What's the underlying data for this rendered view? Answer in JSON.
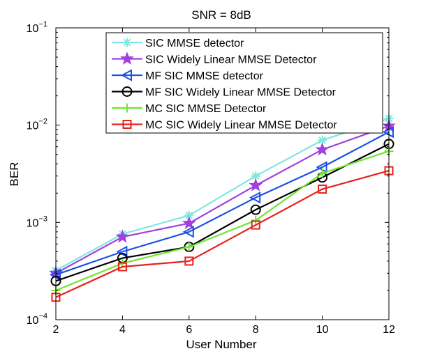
{
  "chart_data": {
    "type": "line",
    "title": "SNR = 8dB",
    "xlabel": "User Number",
    "ylabel": "BER",
    "xlim": [
      2,
      12
    ],
    "ylim": [
      0.0001,
      0.1
    ],
    "yscale": "log",
    "x_ticks": [
      "2",
      "4",
      "6",
      "8",
      "10",
      "12"
    ],
    "y_ticks": [
      {
        "base": "10",
        "exp": "−4"
      },
      {
        "base": "10",
        "exp": "−3"
      },
      {
        "base": "10",
        "exp": "−2"
      },
      {
        "base": "10",
        "exp": "−1"
      }
    ],
    "legend_position": "top-right",
    "grid": false,
    "x": [
      2,
      4,
      6,
      8,
      10,
      12
    ],
    "series": [
      {
        "name": "SIC MMSE detector",
        "color": "#7ee8e0",
        "marker": "asterisk",
        "values": [
          0.00032,
          0.00076,
          0.00118,
          0.003,
          0.007,
          0.0117
        ]
      },
      {
        "name": "SIC Widely Linear MMSE Detector",
        "color": "#a040e0",
        "marker": "star",
        "values": [
          0.0003,
          0.00071,
          0.00098,
          0.0024,
          0.0056,
          0.0098
        ]
      },
      {
        "name": "MF SIC MMSE detector",
        "color": "#1a4fe8",
        "marker": "triangle-left",
        "values": [
          0.00029,
          0.0005,
          0.0008,
          0.0018,
          0.0037,
          0.0085
        ]
      },
      {
        "name": "MF SIC Widely Linear MMSE Detector",
        "color": "#000000",
        "marker": "circle",
        "values": [
          0.00025,
          0.00043,
          0.00056,
          0.00135,
          0.0029,
          0.0064
        ]
      },
      {
        "name": "MC SIC MMSE Detector",
        "color": "#6ee630",
        "marker": "plus",
        "values": [
          0.0002,
          0.00038,
          0.00056,
          0.00105,
          0.0032,
          0.0054
        ]
      },
      {
        "name": "MC SIC Widely Linear MMSE Detector",
        "color": "#e8201a",
        "marker": "square",
        "values": [
          0.00017,
          0.00035,
          0.0004,
          0.00094,
          0.0022,
          0.0034
        ]
      }
    ]
  }
}
